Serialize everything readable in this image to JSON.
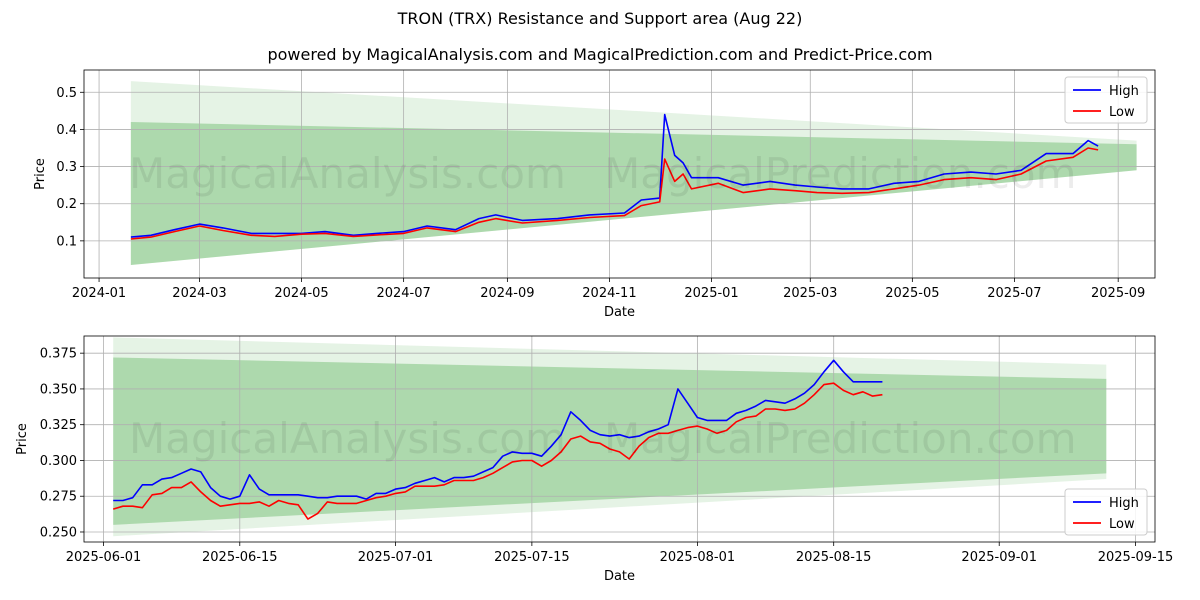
{
  "title": "TRON (TRX) Resistance and Support area (Aug 22)",
  "subtitle": "powered by MagicalAnalysis.com and MagicalPrediction.com and Predict-Price.com",
  "watermarks": [
    "MagicalAnalysis.com",
    "MagicalPrediction.com"
  ],
  "colors": {
    "high": "#0000ff",
    "low": "#ff0000",
    "band": "#2ca02c"
  },
  "chart_data": [
    {
      "type": "line",
      "xlabel": "Date",
      "ylabel": "Price",
      "x_ticks": [
        "2024-01",
        "2024-03",
        "2024-05",
        "2024-07",
        "2024-09",
        "2024-11",
        "2025-01",
        "2025-03",
        "2025-05",
        "2025-07",
        "2025-09"
      ],
      "y_ticks": [
        "0.1",
        "0.2",
        "0.3",
        "0.4",
        "0.5"
      ],
      "xlim": [
        "2023-12-23",
        "2025-09-23"
      ],
      "ylim": [
        0.0,
        0.56
      ],
      "grid": true,
      "legend": {
        "position": "top-right",
        "entries": [
          "High",
          "Low"
        ]
      },
      "bands": [
        {
          "x": [
            "2024-01-20",
            "2025-09-12"
          ],
          "upper": [
            0.53,
            0.37
          ],
          "lower": [
            0.035,
            0.29
          ],
          "opacity": 0.12
        },
        {
          "x": [
            "2024-01-20",
            "2025-09-12"
          ],
          "upper": [
            0.42,
            0.36
          ],
          "lower": [
            0.035,
            0.29
          ],
          "opacity": 0.3
        }
      ],
      "series": [
        {
          "name": "High",
          "x": [
            "2024-01-20",
            "2024-02-01",
            "2024-02-15",
            "2024-03-01",
            "2024-03-15",
            "2024-04-01",
            "2024-04-15",
            "2024-05-01",
            "2024-05-15",
            "2024-06-01",
            "2024-06-15",
            "2024-07-01",
            "2024-07-15",
            "2024-08-01",
            "2024-08-15",
            "2024-08-25",
            "2024-09-10",
            "2024-10-01",
            "2024-10-20",
            "2024-11-10",
            "2024-11-20",
            "2024-12-01",
            "2024-12-04",
            "2024-12-10",
            "2024-12-15",
            "2024-12-20",
            "2025-01-05",
            "2025-01-20",
            "2025-02-05",
            "2025-02-20",
            "2025-03-05",
            "2025-03-20",
            "2025-04-05",
            "2025-04-20",
            "2025-05-05",
            "2025-05-20",
            "2025-06-05",
            "2025-06-20",
            "2025-07-05",
            "2025-07-20",
            "2025-08-05",
            "2025-08-14",
            "2025-08-20"
          ],
          "values": [
            0.11,
            0.115,
            0.13,
            0.145,
            0.135,
            0.12,
            0.12,
            0.12,
            0.125,
            0.115,
            0.12,
            0.125,
            0.14,
            0.13,
            0.16,
            0.17,
            0.155,
            0.16,
            0.17,
            0.175,
            0.21,
            0.215,
            0.44,
            0.33,
            0.31,
            0.27,
            0.27,
            0.25,
            0.26,
            0.25,
            0.245,
            0.24,
            0.24,
            0.255,
            0.26,
            0.28,
            0.285,
            0.28,
            0.29,
            0.335,
            0.335,
            0.37,
            0.355
          ]
        },
        {
          "name": "Low",
          "x": [
            "2024-01-20",
            "2024-02-01",
            "2024-02-15",
            "2024-03-01",
            "2024-03-15",
            "2024-04-01",
            "2024-04-15",
            "2024-05-01",
            "2024-05-15",
            "2024-06-01",
            "2024-06-15",
            "2024-07-01",
            "2024-07-15",
            "2024-08-01",
            "2024-08-15",
            "2024-08-25",
            "2024-09-10",
            "2024-10-01",
            "2024-10-20",
            "2024-11-10",
            "2024-11-20",
            "2024-12-01",
            "2024-12-04",
            "2024-12-10",
            "2024-12-15",
            "2024-12-20",
            "2025-01-05",
            "2025-01-20",
            "2025-02-05",
            "2025-02-20",
            "2025-03-05",
            "2025-03-20",
            "2025-04-05",
            "2025-04-20",
            "2025-05-05",
            "2025-05-20",
            "2025-06-05",
            "2025-06-20",
            "2025-07-05",
            "2025-07-20",
            "2025-08-05",
            "2025-08-14",
            "2025-08-20"
          ],
          "values": [
            0.105,
            0.11,
            0.125,
            0.14,
            0.128,
            0.115,
            0.112,
            0.118,
            0.12,
            0.112,
            0.116,
            0.12,
            0.135,
            0.125,
            0.15,
            0.16,
            0.148,
            0.155,
            0.163,
            0.168,
            0.195,
            0.205,
            0.32,
            0.26,
            0.28,
            0.24,
            0.255,
            0.23,
            0.24,
            0.235,
            0.23,
            0.228,
            0.23,
            0.24,
            0.25,
            0.265,
            0.27,
            0.265,
            0.28,
            0.315,
            0.325,
            0.35,
            0.345
          ]
        }
      ]
    },
    {
      "type": "line",
      "xlabel": "Date",
      "ylabel": "Price",
      "x_ticks": [
        "2025-06-01",
        "2025-06-15",
        "2025-07-01",
        "2025-07-15",
        "2025-08-01",
        "2025-08-15",
        "2025-09-01",
        "2025-09-15"
      ],
      "y_ticks": [
        "0.250",
        "0.275",
        "0.300",
        "0.325",
        "0.350",
        "0.375"
      ],
      "xlim": [
        "2025-05-30",
        "2025-09-17"
      ],
      "ylim": [
        0.243,
        0.387
      ],
      "grid": true,
      "legend": {
        "position": "bottom-right",
        "entries": [
          "High",
          "Low"
        ]
      },
      "bands": [
        {
          "x": [
            "2025-06-02",
            "2025-09-12"
          ],
          "upper": [
            0.386,
            0.367
          ],
          "lower": [
            0.247,
            0.287
          ],
          "opacity": 0.12
        },
        {
          "x": [
            "2025-06-02",
            "2025-09-12"
          ],
          "upper": [
            0.372,
            0.357
          ],
          "lower": [
            0.255,
            0.291
          ],
          "opacity": 0.3
        }
      ],
      "series": [
        {
          "name": "High",
          "x": [
            "2025-06-02",
            "2025-06-03",
            "2025-06-04",
            "2025-06-05",
            "2025-06-06",
            "2025-06-07",
            "2025-06-08",
            "2025-06-09",
            "2025-06-10",
            "2025-06-11",
            "2025-06-12",
            "2025-06-13",
            "2025-06-14",
            "2025-06-15",
            "2025-06-16",
            "2025-06-17",
            "2025-06-18",
            "2025-06-19",
            "2025-06-20",
            "2025-06-21",
            "2025-06-22",
            "2025-06-23",
            "2025-06-24",
            "2025-06-25",
            "2025-06-26",
            "2025-06-27",
            "2025-06-28",
            "2025-06-29",
            "2025-06-30",
            "2025-07-01",
            "2025-07-02",
            "2025-07-03",
            "2025-07-04",
            "2025-07-05",
            "2025-07-06",
            "2025-07-07",
            "2025-07-08",
            "2025-07-09",
            "2025-07-10",
            "2025-07-11",
            "2025-07-12",
            "2025-07-13",
            "2025-07-14",
            "2025-07-15",
            "2025-07-16",
            "2025-07-17",
            "2025-07-18",
            "2025-07-19",
            "2025-07-20",
            "2025-07-21",
            "2025-07-22",
            "2025-07-23",
            "2025-07-24",
            "2025-07-25",
            "2025-07-26",
            "2025-07-27",
            "2025-07-28",
            "2025-07-29",
            "2025-07-30",
            "2025-07-31",
            "2025-08-01",
            "2025-08-02",
            "2025-08-03",
            "2025-08-04",
            "2025-08-05",
            "2025-08-06",
            "2025-08-07",
            "2025-08-08",
            "2025-08-09",
            "2025-08-10",
            "2025-08-11",
            "2025-08-12",
            "2025-08-13",
            "2025-08-14",
            "2025-08-15",
            "2025-08-16",
            "2025-08-17",
            "2025-08-18",
            "2025-08-19",
            "2025-08-20"
          ],
          "values": [
            0.272,
            0.272,
            0.274,
            0.283,
            0.283,
            0.287,
            0.288,
            0.291,
            0.294,
            0.292,
            0.281,
            0.275,
            0.273,
            0.275,
            0.29,
            0.28,
            0.276,
            0.276,
            0.276,
            0.276,
            0.275,
            0.274,
            0.274,
            0.275,
            0.275,
            0.275,
            0.273,
            0.277,
            0.277,
            0.28,
            0.281,
            0.284,
            0.286,
            0.288,
            0.285,
            0.288,
            0.288,
            0.289,
            0.292,
            0.295,
            0.303,
            0.306,
            0.305,
            0.305,
            0.303,
            0.31,
            0.318,
            0.334,
            0.328,
            0.321,
            0.318,
            0.317,
            0.318,
            0.316,
            0.317,
            0.32,
            0.322,
            0.325,
            0.35,
            0.34,
            0.33,
            0.328,
            0.328,
            0.328,
            0.333,
            0.335,
            0.338,
            0.342,
            0.341,
            0.34,
            0.343,
            0.347,
            0.353,
            0.362,
            0.37,
            0.362,
            0.355,
            0.355,
            0.355,
            0.355
          ]
        },
        {
          "name": "Low",
          "x": [
            "2025-06-02",
            "2025-06-03",
            "2025-06-04",
            "2025-06-05",
            "2025-06-06",
            "2025-06-07",
            "2025-06-08",
            "2025-06-09",
            "2025-06-10",
            "2025-06-11",
            "2025-06-12",
            "2025-06-13",
            "2025-06-14",
            "2025-06-15",
            "2025-06-16",
            "2025-06-17",
            "2025-06-18",
            "2025-06-19",
            "2025-06-20",
            "2025-06-21",
            "2025-06-22",
            "2025-06-23",
            "2025-06-24",
            "2025-06-25",
            "2025-06-26",
            "2025-06-27",
            "2025-06-28",
            "2025-06-29",
            "2025-06-30",
            "2025-07-01",
            "2025-07-02",
            "2025-07-03",
            "2025-07-04",
            "2025-07-05",
            "2025-07-06",
            "2025-07-07",
            "2025-07-08",
            "2025-07-09",
            "2025-07-10",
            "2025-07-11",
            "2025-07-12",
            "2025-07-13",
            "2025-07-14",
            "2025-07-15",
            "2025-07-16",
            "2025-07-17",
            "2025-07-18",
            "2025-07-19",
            "2025-07-20",
            "2025-07-21",
            "2025-07-22",
            "2025-07-23",
            "2025-07-24",
            "2025-07-25",
            "2025-07-26",
            "2025-07-27",
            "2025-07-28",
            "2025-07-29",
            "2025-07-30",
            "2025-07-31",
            "2025-08-01",
            "2025-08-02",
            "2025-08-03",
            "2025-08-04",
            "2025-08-05",
            "2025-08-06",
            "2025-08-07",
            "2025-08-08",
            "2025-08-09",
            "2025-08-10",
            "2025-08-11",
            "2025-08-12",
            "2025-08-13",
            "2025-08-14",
            "2025-08-15",
            "2025-08-16",
            "2025-08-17",
            "2025-08-18",
            "2025-08-19",
            "2025-08-20"
          ],
          "values": [
            0.266,
            0.268,
            0.268,
            0.267,
            0.276,
            0.277,
            0.281,
            0.281,
            0.285,
            0.278,
            0.272,
            0.268,
            0.269,
            0.27,
            0.27,
            0.271,
            0.268,
            0.272,
            0.27,
            0.269,
            0.259,
            0.263,
            0.271,
            0.27,
            0.27,
            0.27,
            0.272,
            0.274,
            0.275,
            0.277,
            0.278,
            0.282,
            0.282,
            0.282,
            0.283,
            0.286,
            0.286,
            0.286,
            0.288,
            0.291,
            0.295,
            0.299,
            0.3,
            0.3,
            0.296,
            0.3,
            0.306,
            0.315,
            0.317,
            0.313,
            0.312,
            0.308,
            0.306,
            0.301,
            0.31,
            0.316,
            0.319,
            0.319,
            0.321,
            0.323,
            0.324,
            0.322,
            0.319,
            0.321,
            0.327,
            0.33,
            0.331,
            0.336,
            0.336,
            0.335,
            0.336,
            0.34,
            0.346,
            0.353,
            0.354,
            0.349,
            0.346,
            0.348,
            0.345,
            0.346
          ]
        }
      ]
    }
  ]
}
